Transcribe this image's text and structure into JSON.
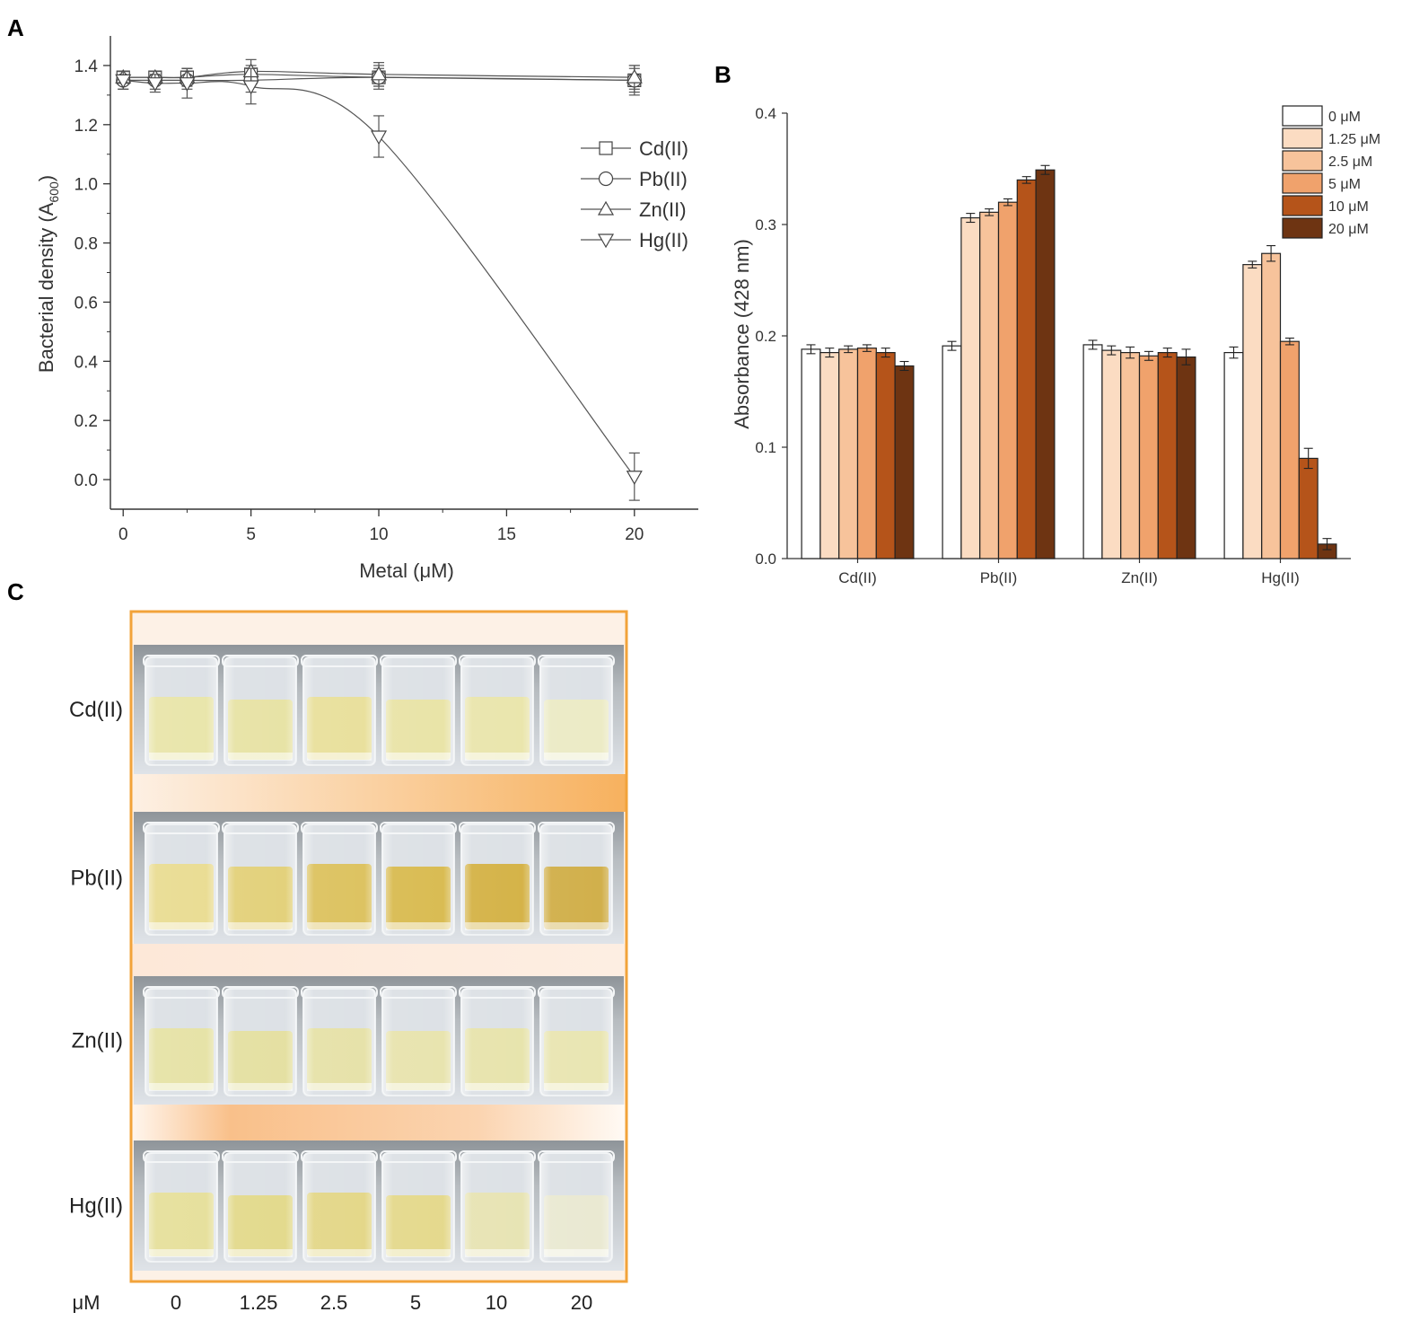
{
  "panel_labels": {
    "a": "A",
    "b": "B",
    "c": "C"
  },
  "chart_data": [
    {
      "type": "line",
      "panel": "A",
      "xlabel": "Metal (μM)",
      "ylabel_main": "Bacterial density (A",
      "ylabel_sub": "600",
      "ylabel_end": ")",
      "xlim": [
        -0.5,
        22.5
      ],
      "ylim": [
        -0.1,
        1.5
      ],
      "xticks": [
        0,
        5,
        10,
        15,
        20
      ],
      "yticks": [
        0.0,
        0.2,
        0.4,
        0.6,
        0.8,
        1.0,
        1.2,
        1.4
      ],
      "xtick_labels": [
        "0",
        "5",
        "10",
        "15",
        "20"
      ],
      "ytick_labels": [
        "0.0",
        "0.2",
        "0.4",
        "0.6",
        "0.8",
        "1.0",
        "1.2",
        "1.4"
      ],
      "x": [
        0,
        1.25,
        2.5,
        5,
        10,
        20
      ],
      "series": [
        {
          "name": "Cd(II)",
          "marker": "square",
          "values": [
            1.36,
            1.36,
            1.36,
            1.37,
            1.36,
            1.35
          ],
          "errors": [
            0.02,
            0.02,
            0.03,
            0.03,
            0.03,
            0.04
          ]
        },
        {
          "name": "Pb(II)",
          "marker": "circle",
          "values": [
            1.35,
            1.35,
            1.35,
            1.35,
            1.36,
            1.35
          ],
          "errors": [
            0.03,
            0.03,
            0.03,
            0.04,
            0.04,
            0.05
          ]
        },
        {
          "name": "Zn(II)",
          "marker": "triangle-up",
          "values": [
            1.36,
            1.36,
            1.36,
            1.38,
            1.37,
            1.36
          ],
          "errors": [
            0.02,
            0.02,
            0.03,
            0.04,
            0.04,
            0.04
          ]
        },
        {
          "name": "Hg(II)",
          "marker": "triangle-down",
          "values": [
            1.35,
            1.34,
            1.34,
            1.33,
            1.16,
            0.01
          ],
          "errors": [
            0.03,
            0.03,
            0.05,
            0.06,
            0.07,
            0.08
          ]
        }
      ],
      "legend_position": "top-right"
    },
    {
      "type": "bar",
      "panel": "B",
      "ylabel": "Absorbance (428 nm)",
      "ylim": [
        0.0,
        0.4
      ],
      "yticks": [
        0.0,
        0.1,
        0.2,
        0.3,
        0.4
      ],
      "ytick_labels": [
        "0.0",
        "0.1",
        "0.2",
        "0.3",
        "0.4"
      ],
      "categories": [
        "Cd(II)",
        "Pb(II)",
        "Zn(II)",
        "Hg(II)"
      ],
      "series": [
        {
          "name": "0 μM",
          "color": "#ffffff",
          "values": [
            0.188,
            0.191,
            0.192,
            0.185
          ],
          "errors": [
            0.004,
            0.004,
            0.004,
            0.005
          ]
        },
        {
          "name": "1.25 μM",
          "color": "#fbdcc2",
          "values": [
            0.185,
            0.306,
            0.187,
            0.264
          ],
          "errors": [
            0.004,
            0.004,
            0.004,
            0.003
          ]
        },
        {
          "name": "2.5 μM",
          "color": "#f7c39b",
          "values": [
            0.188,
            0.311,
            0.185,
            0.274
          ],
          "errors": [
            0.003,
            0.003,
            0.005,
            0.007
          ]
        },
        {
          "name": "5 μM",
          "color": "#f0a26c",
          "values": [
            0.189,
            0.32,
            0.182,
            0.195
          ],
          "errors": [
            0.003,
            0.003,
            0.004,
            0.003
          ]
        },
        {
          "name": "10 μM",
          "color": "#b5541a",
          "values": [
            0.185,
            0.34,
            0.185,
            0.09
          ],
          "errors": [
            0.004,
            0.003,
            0.004,
            0.009
          ]
        },
        {
          "name": "20 μM",
          "color": "#6e3412",
          "values": [
            0.173,
            0.349,
            0.181,
            0.013
          ],
          "errors": [
            0.004,
            0.004,
            0.007,
            0.005
          ]
        }
      ],
      "legend_position": "top-right"
    }
  ],
  "photo_panel": {
    "rows": [
      {
        "label": "Cd(II)",
        "fills": [
          "#e6e2a0",
          "#e4df9a",
          "#e6dc90",
          "#e6e09c",
          "#e7e2a2",
          "#e9e8be"
        ]
      },
      {
        "label": "Pb(II)",
        "fills": [
          "#e7d886",
          "#dfcb6a",
          "#d8bb4c",
          "#d4b33c",
          "#cfa930",
          "#cba533"
        ]
      },
      {
        "label": "Zn(II)",
        "fills": [
          "#e3df9c",
          "#e1dc96",
          "#e3de9e",
          "#e5e0a4",
          "#e4e0a2",
          "#e6e2a8"
        ]
      },
      {
        "label": "Hg(II)",
        "fills": [
          "#e3dc90",
          "#dfd57e",
          "#e0d27a",
          "#e1d47e",
          "#e4e0aa",
          "#e7e6cc"
        ]
      }
    ],
    "unit_label": "μM",
    "concentrations": [
      "0",
      "1.25",
      "2.5",
      "5",
      "10",
      "20"
    ],
    "border_color": "#f2a33a"
  }
}
